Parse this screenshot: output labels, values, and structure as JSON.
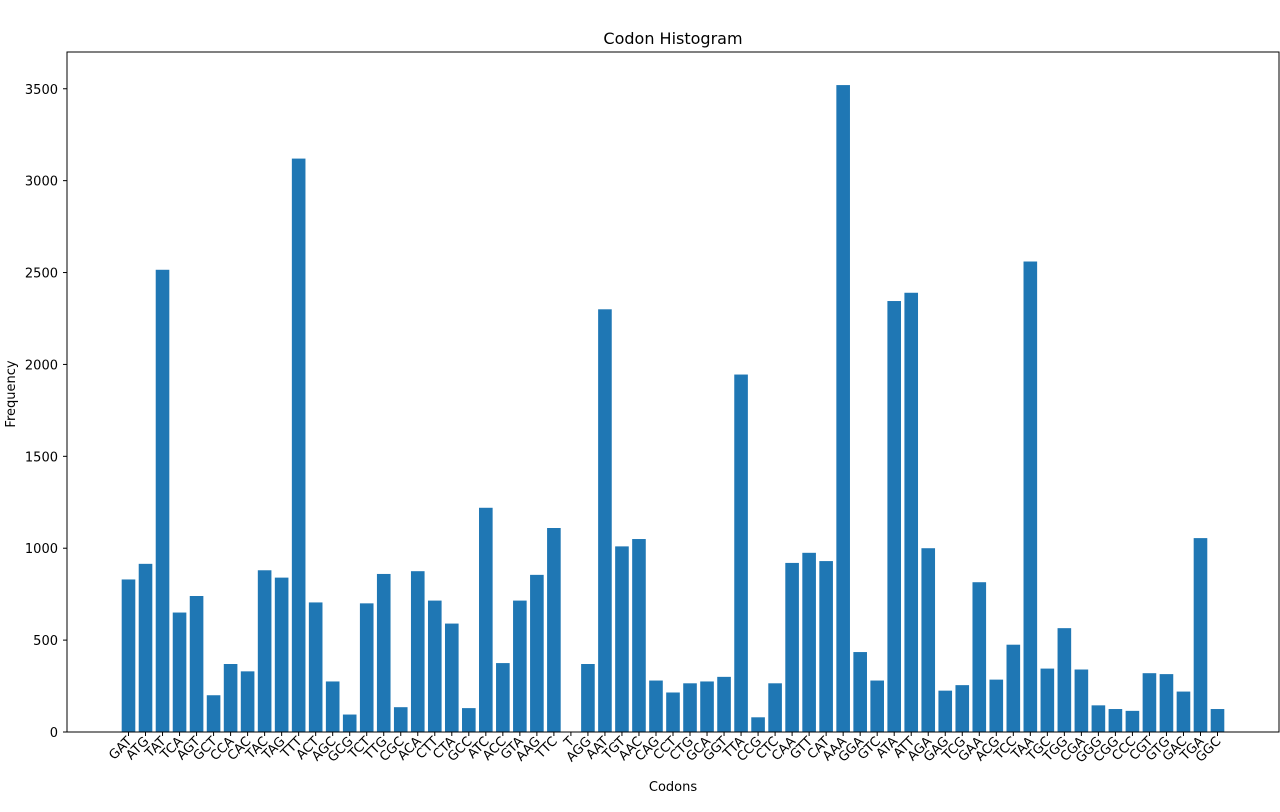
{
  "chart_data": {
    "type": "bar",
    "title": "Codon Histogram",
    "xlabel": "Codons",
    "ylabel": "Frequency",
    "ylim": [
      0,
      3700
    ],
    "yticks": [
      0,
      500,
      1000,
      1500,
      2000,
      2500,
      3000,
      3500
    ],
    "grid": false,
    "legend": "none",
    "bar_color": "#1f77b4",
    "categories": [
      "GAT",
      "ATG",
      "TAT",
      "TCA",
      "AGT",
      "GCT",
      "CCA",
      "CAC",
      "TAC",
      "TAG",
      "TTT",
      "ACT",
      "AGC",
      "GCG",
      "TCT",
      "TTG",
      "CGC",
      "ACA",
      "CTT",
      "CTA",
      "GCC",
      "ATC",
      "ACC",
      "GTA",
      "AAG",
      "TTC",
      "T",
      "AGG",
      "AAT",
      "TGT",
      "AAC",
      "CAG",
      "CCT",
      "CTG",
      "GCA",
      "GGT",
      "TTA",
      "CCG",
      "CTC",
      "CAA",
      "GTT",
      "CAT",
      "AAA",
      "GGA",
      "GTC",
      "ATA",
      "ATT",
      "AGA",
      "GAG",
      "TCG",
      "GAA",
      "ACG",
      "TCC",
      "TAA",
      "TGC",
      "TGG",
      "CGA",
      "GGG",
      "CGG",
      "CCC",
      "CGT",
      "GTG",
      "GAC",
      "TGA",
      "GGC"
    ],
    "values": [
      830,
      915,
      2515,
      650,
      740,
      200,
      370,
      330,
      880,
      840,
      3120,
      705,
      275,
      95,
      700,
      860,
      135,
      875,
      715,
      590,
      130,
      1220,
      375,
      715,
      855,
      1110,
      0,
      370,
      2300,
      1010,
      1050,
      280,
      215,
      265,
      275,
      300,
      1945,
      80,
      265,
      920,
      975,
      930,
      3520,
      435,
      280,
      2345,
      2390,
      1000,
      225,
      255,
      815,
      285,
      475,
      2560,
      345,
      565,
      340,
      145,
      125,
      115,
      320,
      315,
      220,
      1055,
      125
    ]
  }
}
